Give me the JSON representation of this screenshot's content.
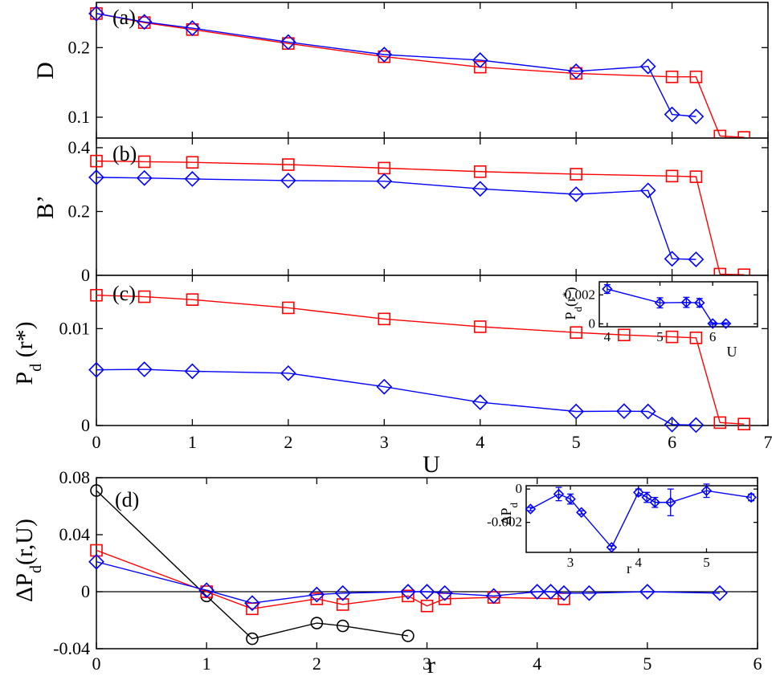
{
  "colors": {
    "red": "#ff0000",
    "blue": "#0000ff",
    "black": "#000000"
  },
  "chart_data": [
    {
      "panel": "(a)",
      "type": "line",
      "ylabel": "D",
      "xlim": [
        0,
        7
      ],
      "ylim": [
        0.07,
        0.265
      ],
      "yticks": [
        0.1,
        0.2
      ],
      "ytick_labels": [
        "0.1",
        "0.2"
      ],
      "series": [
        {
          "color": "red",
          "marker": "square",
          "x": [
            0,
            0.5,
            1,
            2,
            3,
            4,
            5,
            6,
            6.25,
            6.5,
            6.75
          ],
          "y": [
            0.249,
            0.236,
            0.226,
            0.206,
            0.187,
            0.172,
            0.163,
            0.158,
            0.158,
            0.073,
            0.071
          ]
        },
        {
          "color": "blue",
          "marker": "diamond",
          "x": [
            0,
            0.5,
            1,
            2,
            3,
            4,
            5,
            5.75,
            6,
            6.25
          ],
          "y": [
            0.249,
            0.237,
            0.228,
            0.208,
            0.19,
            0.182,
            0.166,
            0.173,
            0.104,
            0.101
          ]
        }
      ]
    },
    {
      "panel": "(b)",
      "type": "line",
      "ylabel": "B’",
      "xlim": [
        0,
        7
      ],
      "ylim": [
        0,
        0.43
      ],
      "yticks": [
        0,
        0.2,
        0.4
      ],
      "ytick_labels": [
        "0",
        "0.2",
        "0.4"
      ],
      "series": [
        {
          "color": "red",
          "marker": "square",
          "x": [
            0,
            0.5,
            1,
            2,
            3,
            4,
            5,
            6,
            6.25,
            6.5,
            6.75
          ],
          "y": [
            0.358,
            0.356,
            0.354,
            0.347,
            0.336,
            0.325,
            0.317,
            0.311,
            0.309,
            0.004,
            0.002
          ]
        },
        {
          "color": "blue",
          "marker": "diamond",
          "x": [
            0,
            0.5,
            1,
            2,
            3,
            4,
            5,
            5.75,
            6,
            6.25
          ],
          "y": [
            0.307,
            0.305,
            0.302,
            0.297,
            0.295,
            0.271,
            0.254,
            0.266,
            0.052,
            0.05
          ]
        }
      ]
    },
    {
      "panel": "(c)",
      "type": "line",
      "ylabel": "Pd (r*)",
      "xlabel": "U",
      "xlim": [
        0,
        7
      ],
      "ylim": [
        0,
        0.0155
      ],
      "xticks": [
        0,
        1,
        2,
        3,
        4,
        5,
        6,
        7
      ],
      "xtick_labels": [
        "0",
        "1",
        "2",
        "3",
        "4",
        "5",
        "6",
        "7"
      ],
      "yticks": [
        0,
        0.01
      ],
      "ytick_labels": [
        "0",
        "0.01"
      ],
      "series": [
        {
          "color": "red",
          "marker": "square",
          "x": [
            0,
            0.5,
            1,
            2,
            3,
            4,
            5,
            5.5,
            6,
            6.25,
            6.5,
            6.75
          ],
          "y": [
            0.01345,
            0.0133,
            0.013,
            0.01215,
            0.011,
            0.0102,
            0.0096,
            0.00935,
            0.00915,
            0.00905,
            0.0003,
            0.00015
          ]
        },
        {
          "color": "blue",
          "marker": "diamond",
          "x": [
            0,
            0.5,
            1,
            2,
            3,
            4,
            5,
            5.5,
            5.75,
            6,
            6.25
          ],
          "y": [
            0.00575,
            0.0058,
            0.0056,
            0.0054,
            0.004,
            0.0024,
            0.00145,
            0.00148,
            0.00145,
            0.0001,
            5e-05
          ]
        }
      ],
      "inset": {
        "ylabel": "Pd(r*)",
        "xlabel": "U",
        "xlim": [
          3.85,
          6.85
        ],
        "ylim": [
          -0.0002,
          0.0029
        ],
        "xticks": [
          4,
          5,
          6
        ],
        "xtick_labels": [
          "4",
          "5",
          "6"
        ],
        "yticks": [
          0,
          0.002
        ],
        "ytick_labels": [
          "0",
          "0.002"
        ],
        "series": [
          {
            "color": "blue",
            "marker": "diamond",
            "x": [
              4,
              5,
              5.5,
              5.75,
              6,
              6.25
            ],
            "y": [
              0.0024,
              0.00145,
              0.00148,
              0.00145,
              2e-05,
              2e-05
            ],
            "err": [
              0.0003,
              0.00035,
              0.00035,
              0.0003,
              5e-05,
              5e-05
            ]
          }
        ]
      }
    },
    {
      "panel": "(d)",
      "type": "line",
      "ylabel": "ΔPd(r,U)",
      "xlabel": "r",
      "xlim": [
        0,
        6
      ],
      "ylim": [
        -0.04,
        0.08
      ],
      "xticks": [
        0,
        1,
        2,
        3,
        4,
        5,
        6
      ],
      "xtick_labels": [
        "0",
        "1",
        "2",
        "3",
        "4",
        "5",
        "6"
      ],
      "yticks": [
        -0.04,
        0,
        0.04,
        0.08
      ],
      "ytick_labels": [
        "-0.04",
        "0",
        "0.04",
        "0.08"
      ],
      "series": [
        {
          "color": "black",
          "marker": "circle",
          "x": [
            0,
            1,
            1.414,
            2,
            2.236,
            2.828
          ],
          "y": [
            0.071,
            -0.003,
            -0.033,
            -0.022,
            -0.024,
            -0.031
          ]
        },
        {
          "color": "red",
          "marker": "square",
          "x": [
            0,
            1,
            1.414,
            2,
            2.236,
            2.828,
            3,
            3.162,
            3.606,
            4.243
          ],
          "y": [
            0.029,
            0.0,
            -0.012,
            -0.005,
            -0.009,
            -0.003,
            -0.01,
            -0.005,
            -0.004,
            -0.005
          ]
        },
        {
          "color": "blue",
          "marker": "diamond",
          "x": [
            0,
            1,
            1.414,
            2,
            2.236,
            2.828,
            3,
            3.162,
            3.606,
            4,
            4.123,
            4.243,
            4.472,
            5,
            5.657
          ],
          "y": [
            0.021,
            0.001,
            -0.008,
            -0.002,
            -0.001,
            0.0,
            0.0,
            -0.001,
            -0.003,
            0.0,
            0.0,
            -0.001,
            -0.001,
            0.0,
            -0.001
          ]
        }
      ],
      "inset": {
        "ylabel": "ΔPd",
        "xlabel": "r",
        "xlim": [
          2.35,
          5.75
        ],
        "ylim": [
          -0.0038,
          0.0002
        ],
        "xticks": [
          3,
          4,
          5
        ],
        "xtick_labels": [
          "3",
          "4",
          "5"
        ],
        "yticks": [
          0,
          -0.002
        ],
        "ytick_labels": [
          "0",
          "-0.002"
        ],
        "series": [
          {
            "color": "blue",
            "marker": "diamond",
            "x": [
              2.414,
              2.828,
              3.0,
              3.162,
              3.606,
              4.0,
              4.123,
              4.243,
              4.472,
              5.0,
              5.657
            ],
            "y": [
              -0.0012,
              -0.0003,
              -0.0006,
              -0.0014,
              -0.0035,
              -0.0002,
              -0.0005,
              -0.0008,
              -0.0008,
              -0.0001,
              -0.0005
            ],
            "err": [
              0.0001,
              0.0004,
              0.0003,
              0.0001,
              0.0001,
              0.0002,
              0.0003,
              0.0003,
              0.0008,
              0.0004,
              0.0002
            ]
          }
        ]
      }
    }
  ]
}
